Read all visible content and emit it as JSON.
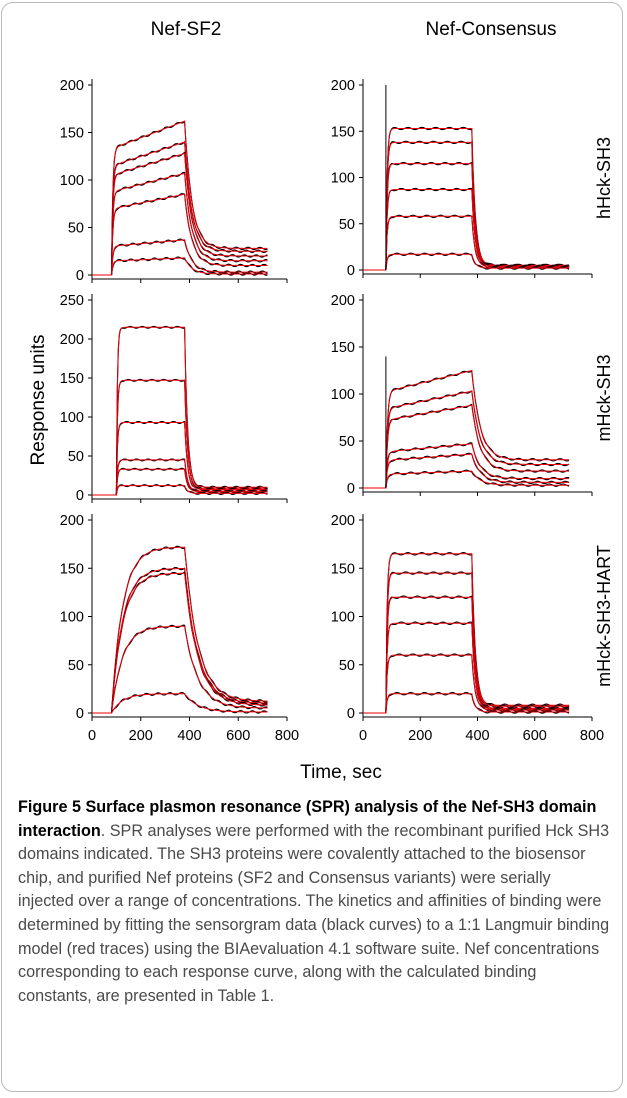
{
  "caption": {
    "label": "Figure 5",
    "title": "Surface plasmon resonance (SPR) analysis of the Nef-SH3 domain interaction",
    "body": ". SPR analyses were performed with the recombinant purified Hck SH3 domains indicated. The SH3 proteins were covalently attached to the biosensor chip, and purified Nef proteins (SF2 and Consensus variants) were serially injected over a range of concentrations. The kinetics and affinities of binding were determined by fitting the sensorgram data (black curves) to a 1:1 Langmuir binding model (red traces) using the BIAevaluation 4.1 software suite. Nef concentrations corresponding to each response curve, along with the calculated binding constants, are presented in Table 1."
  },
  "colors": {
    "data_curve": "#000000",
    "fit_curve": "#e8000a",
    "frame": "#b9b9b9",
    "caption_text": "#4a4a4a"
  },
  "figure": {
    "column_titles": [
      "Nef-SF2",
      "Nef-Consensus"
    ],
    "row_labels": [
      "hHck-SH3",
      "mHck-SH3",
      "mHck-SH3-HART"
    ],
    "ylabel": "Response units",
    "xlabel": "Time, sec",
    "x_ticks": [
      "0",
      "200",
      "400",
      "600",
      "800"
    ]
  },
  "chart_data": [
    {
      "type": "line",
      "panel": "hHck-SH3 / Nef-SF2",
      "xlim": [
        0,
        800
      ],
      "ylim": [
        0,
        200
      ],
      "yticks": [
        "0",
        "50",
        "100",
        "150",
        "200"
      ],
      "injection_start": 80,
      "injection_end": 380,
      "series_plateaus": [
        162,
        140,
        128,
        107,
        85,
        37,
        18
      ],
      "dissociation_end": [
        28,
        25,
        20,
        15,
        10,
        3,
        1
      ],
      "kinetics": "slow_rise"
    },
    {
      "type": "line",
      "panel": "hHck-SH3 / Nef-Consensus",
      "xlim": [
        0,
        800
      ],
      "ylim": [
        0,
        200
      ],
      "yticks": [
        "0",
        "50",
        "100",
        "150",
        "200"
      ],
      "injection_start": 80,
      "injection_end": 380,
      "series_plateaus": [
        153,
        138,
        115,
        87,
        58,
        17
      ],
      "dissociation_end": [
        5,
        5,
        4,
        4,
        3,
        2
      ],
      "spike_at_injection": 200,
      "kinetics": "fast"
    },
    {
      "type": "line",
      "panel": "mHck-SH3 / Nef-SF2",
      "xlim": [
        0,
        800
      ],
      "ylim": [
        0,
        250
      ],
      "yticks": [
        "0",
        "50",
        "100",
        "150",
        "200",
        "250"
      ],
      "injection_start": 100,
      "injection_end": 380,
      "series_plateaus": [
        215,
        147,
        93,
        45,
        33,
        12
      ],
      "dissociation_end": [
        10,
        8,
        7,
        5,
        4,
        2
      ],
      "kinetics": "fast"
    },
    {
      "type": "line",
      "panel": "mHck-SH3 / Nef-Consensus",
      "xlim": [
        0,
        800
      ],
      "ylim": [
        0,
        200
      ],
      "yticks": [
        "0",
        "50",
        "100",
        "150",
        "200"
      ],
      "injection_start": 80,
      "injection_end": 380,
      "series_plateaus": [
        125,
        103,
        88,
        47,
        36,
        18
      ],
      "dissociation_end": [
        30,
        25,
        18,
        10,
        6,
        3
      ],
      "spike_at_injection": 140,
      "kinetics": "slow_rise"
    },
    {
      "type": "line",
      "panel": "mHck-SH3-HART / Nef-SF2",
      "xlim": [
        0,
        800
      ],
      "ylim": [
        0,
        200
      ],
      "yticks": [
        "0",
        "50",
        "100",
        "150",
        "200"
      ],
      "injection_start": 80,
      "injection_end": 380,
      "series_plateaus": [
        172,
        150,
        145,
        90,
        20
      ],
      "dissociation_end": [
        12,
        10,
        8,
        5,
        1
      ],
      "kinetics": "curved"
    },
    {
      "type": "line",
      "panel": "mHck-SH3-HART / Nef-Consensus",
      "xlim": [
        0,
        800
      ],
      "ylim": [
        0,
        200
      ],
      "yticks": [
        "0",
        "50",
        "100",
        "150",
        "200"
      ],
      "injection_start": 80,
      "injection_end": 380,
      "series_plateaus": [
        165,
        145,
        120,
        93,
        60,
        20
      ],
      "dissociation_end": [
        8,
        7,
        5,
        4,
        3,
        1
      ],
      "kinetics": "fast"
    }
  ]
}
